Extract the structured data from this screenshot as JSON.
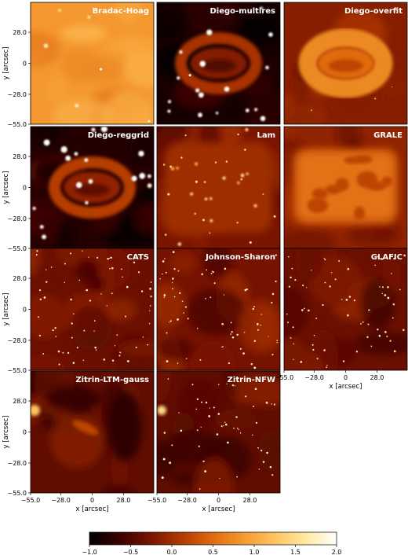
{
  "chart_data": {
    "type": "heatmap",
    "quantity_colormap": [
      "#000000",
      "#3a0000",
      "#7a1500",
      "#b33a00",
      "#e06a10",
      "#f59a30",
      "#ffc460",
      "#ffe9a0",
      "#ffffff"
    ],
    "colorbar": {
      "min": -1.0,
      "max": 2.0,
      "ticks": [
        -1.0,
        -0.5,
        0.0,
        0.5,
        1.0,
        1.5,
        2.0
      ],
      "tick_labels": [
        "−1.0",
        "−0.5",
        "0.0",
        "0.5",
        "1.0",
        "1.5",
        "2.0"
      ]
    },
    "axes": {
      "xlabel": "x [arcsec]",
      "ylabel": "y [arcsec]",
      "xlim": [
        -55.0,
        55.0
      ],
      "ylim": [
        -55.0,
        55.0
      ],
      "x_ticks": [
        -55.0,
        -28.0,
        0,
        28.0
      ],
      "x_tick_labels": [
        "−55.0",
        "−28.0",
        "0",
        "28.0"
      ],
      "y_ticks": [
        28.0,
        0,
        -28.0,
        -55.0
      ],
      "y_tick_labels": [
        "28.0",
        "0",
        "−28.0",
        "−55.0"
      ]
    },
    "panels": [
      {
        "title": "Bradac-Hoag",
        "style": "smooth",
        "base": 0.62
      },
      {
        "title": "Diego-multires",
        "style": "ring",
        "base": 0.05
      },
      {
        "title": "Diego-overfit",
        "style": "ringsoft",
        "base": 0.28
      },
      {
        "title": "Diego-reggrid",
        "style": "ring",
        "base": 0.08
      },
      {
        "title": "Lam",
        "style": "blotch",
        "base": 0.25
      },
      {
        "title": "GRALE",
        "style": "grale",
        "base": 0.3
      },
      {
        "title": "CATS",
        "style": "speckle",
        "base": 0.22
      },
      {
        "title": "Johnson-Sharon",
        "style": "speckle",
        "base": 0.24
      },
      {
        "title": "GLAFIC",
        "style": "speckle",
        "base": 0.22
      },
      {
        "title": "Zitrin-LTM-gauss",
        "style": "smoothdark",
        "base": 0.2
      },
      {
        "title": "Zitrin-NFW",
        "style": "speckle2",
        "base": 0.2
      }
    ]
  }
}
